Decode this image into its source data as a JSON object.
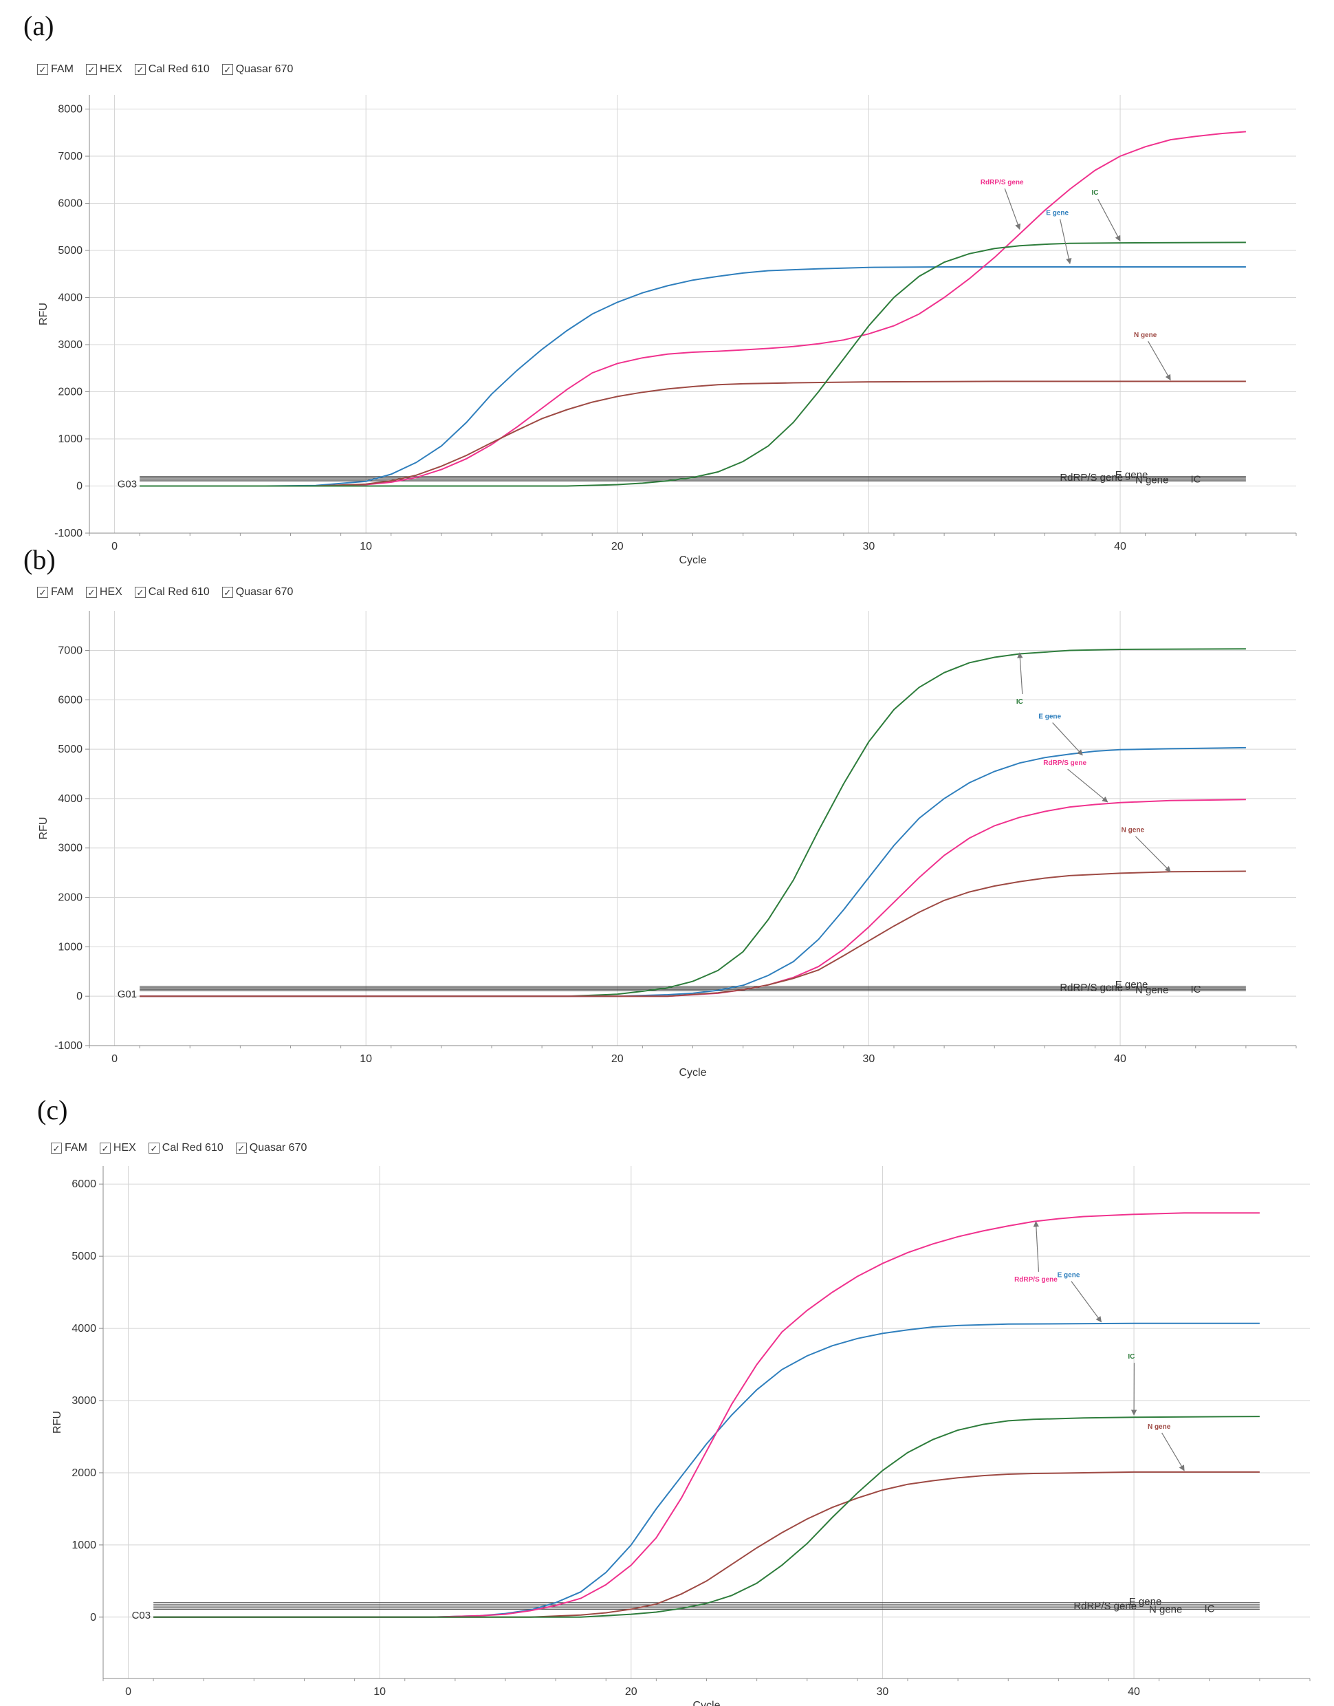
{
  "legend": [
    {
      "label": "FAM",
      "checked": true
    },
    {
      "label": "HEX",
      "checked": true
    },
    {
      "label": "Cal Red 610",
      "checked": true
    },
    {
      "label": "Quasar 670",
      "checked": true
    }
  ],
  "colors": {
    "E gene": "#2f7fbd",
    "RdRP/S gene": "#f0328e",
    "N gene": "#9e4a44",
    "IC": "#2e7d3c"
  },
  "chart_data": [
    {
      "panel_label": "(a)",
      "type": "line",
      "xlabel": "Cycle",
      "ylabel": "RFU",
      "xlim": [
        -1,
        47
      ],
      "ylim": [
        -1000,
        8300
      ],
      "xticks": [
        0,
        10,
        20,
        30,
        40
      ],
      "yticks": [
        -1000,
        0,
        1000,
        2000,
        3000,
        4000,
        5000,
        6000,
        7000,
        8000
      ],
      "well": "G03",
      "thresholds": [
        200,
        170,
        140,
        110
      ],
      "threshold_labels_text": [
        "RdRP/S gene",
        "E gene",
        "N gene",
        "IC"
      ],
      "series": [
        {
          "name": "E gene",
          "x": [
            1,
            6,
            8,
            10,
            11,
            12,
            13,
            14,
            15,
            16,
            17,
            18,
            19,
            20,
            21,
            22,
            23,
            24,
            25,
            26,
            28,
            30,
            33,
            36,
            40,
            45
          ],
          "y": [
            0,
            0,
            10,
            100,
            250,
            500,
            850,
            1350,
            1950,
            2450,
            2900,
            3300,
            3650,
            3900,
            4100,
            4250,
            4370,
            4450,
            4520,
            4570,
            4610,
            4640,
            4650,
            4650,
            4650,
            4650
          ]
        },
        {
          "name": "RdRP/S gene",
          "x": [
            1,
            8,
            10,
            11,
            12,
            13,
            14,
            15,
            16,
            17,
            18,
            19,
            20,
            21,
            22,
            23,
            24,
            25,
            26,
            27,
            28,
            29,
            30,
            31,
            32,
            33,
            34,
            35,
            36,
            37,
            38,
            39,
            40,
            41,
            42,
            43,
            44,
            45
          ],
          "y": [
            0,
            0,
            30,
            80,
            180,
            350,
            580,
            880,
            1250,
            1650,
            2050,
            2400,
            2600,
            2720,
            2800,
            2840,
            2860,
            2890,
            2920,
            2960,
            3020,
            3100,
            3230,
            3400,
            3650,
            4000,
            4400,
            4850,
            5350,
            5850,
            6300,
            6700,
            7000,
            7200,
            7350,
            7420,
            7480,
            7520
          ]
        },
        {
          "name": "N gene",
          "x": [
            1,
            8,
            10,
            11,
            12,
            13,
            14,
            15,
            16,
            17,
            18,
            19,
            20,
            21,
            22,
            23,
            24,
            25,
            27,
            30,
            35,
            40,
            45
          ],
          "y": [
            0,
            0,
            40,
            110,
            230,
            420,
            650,
            920,
            1180,
            1430,
            1620,
            1780,
            1900,
            1990,
            2060,
            2110,
            2150,
            2170,
            2190,
            2210,
            2220,
            2220,
            2220
          ]
        },
        {
          "name": "IC",
          "x": [
            1,
            18,
            20,
            21,
            22,
            23,
            24,
            25,
            26,
            27,
            28,
            29,
            30,
            31,
            32,
            33,
            34,
            35,
            36,
            37,
            38,
            40,
            45
          ],
          "y": [
            0,
            0,
            30,
            60,
            110,
            180,
            300,
            520,
            850,
            1350,
            2000,
            2700,
            3400,
            4000,
            4450,
            4750,
            4930,
            5040,
            5100,
            5130,
            5150,
            5160,
            5170
          ]
        }
      ],
      "annotations": [
        {
          "text": "RdRP/S gene",
          "series": "RdRP/S gene",
          "tx": 35.3,
          "ty": 6400,
          "hx": 36,
          "hy": 5450
        },
        {
          "text": "E gene",
          "series": "E gene",
          "tx": 37.5,
          "ty": 5750,
          "hx": 38,
          "hy": 4720
        },
        {
          "text": "IC",
          "series": "IC",
          "tx": 39,
          "ty": 6180,
          "hx": 40,
          "hy": 5200
        },
        {
          "text": "N gene",
          "series": "N gene",
          "tx": 41,
          "ty": 3160,
          "hx": 42,
          "hy": 2250
        }
      ]
    },
    {
      "panel_label": "(b)",
      "type": "line",
      "xlabel": "Cycle",
      "ylabel": "RFU",
      "xlim": [
        -1,
        47
      ],
      "ylim": [
        -1000,
        7800
      ],
      "xticks": [
        0,
        10,
        20,
        30,
        40
      ],
      "yticks": [
        -1000,
        0,
        1000,
        2000,
        3000,
        4000,
        5000,
        6000,
        7000
      ],
      "well": "G01",
      "thresholds": [
        200,
        170,
        140,
        110
      ],
      "threshold_labels_text": [
        "RdRP/S gene",
        "E gene",
        "N gene",
        "IC"
      ],
      "series": [
        {
          "name": "IC",
          "x": [
            1,
            18,
            20,
            21,
            22,
            23,
            24,
            25,
            26,
            27,
            28,
            29,
            30,
            31,
            32,
            33,
            34,
            35,
            36,
            38,
            40,
            45
          ],
          "y": [
            0,
            0,
            40,
            100,
            170,
            300,
            520,
            900,
            1550,
            2350,
            3350,
            4300,
            5150,
            5800,
            6250,
            6550,
            6750,
            6860,
            6930,
            7000,
            7020,
            7030
          ]
        },
        {
          "name": "E gene",
          "x": [
            1,
            20,
            22,
            23,
            24,
            25,
            26,
            27,
            28,
            29,
            30,
            31,
            32,
            33,
            34,
            35,
            36,
            37,
            38,
            39,
            40,
            42,
            45
          ],
          "y": [
            0,
            0,
            30,
            60,
            120,
            220,
            420,
            700,
            1150,
            1750,
            2400,
            3050,
            3600,
            4000,
            4320,
            4550,
            4720,
            4830,
            4900,
            4960,
            4990,
            5010,
            5030
          ]
        },
        {
          "name": "RdRP/S gene",
          "x": [
            1,
            22,
            24,
            25,
            26,
            27,
            28,
            29,
            30,
            31,
            32,
            33,
            34,
            35,
            36,
            37,
            38,
            39,
            40,
            42,
            45
          ],
          "y": [
            0,
            0,
            60,
            130,
            230,
            380,
            600,
            950,
            1400,
            1900,
            2400,
            2850,
            3200,
            3450,
            3620,
            3740,
            3830,
            3880,
            3920,
            3960,
            3980
          ]
        },
        {
          "name": "N gene",
          "x": [
            1,
            22,
            24,
            25,
            26,
            27,
            28,
            29,
            30,
            31,
            32,
            33,
            34,
            35,
            36,
            37,
            38,
            40,
            42,
            45
          ],
          "y": [
            0,
            0,
            70,
            130,
            230,
            360,
            530,
            820,
            1120,
            1420,
            1700,
            1940,
            2110,
            2230,
            2320,
            2390,
            2440,
            2490,
            2520,
            2530
          ]
        }
      ],
      "annotations": [
        {
          "text": "IC",
          "series": "IC",
          "tx": 36,
          "ty": 5920,
          "hx": 36,
          "hy": 6950
        },
        {
          "text": "E gene",
          "series": "E gene",
          "tx": 37.2,
          "ty": 5620,
          "hx": 38.5,
          "hy": 4880
        },
        {
          "text": "RdRP/S gene",
          "series": "RdRP/S gene",
          "tx": 37.8,
          "ty": 4680,
          "hx": 39.5,
          "hy": 3930
        },
        {
          "text": "N gene",
          "series": "N gene",
          "tx": 40.5,
          "ty": 3320,
          "hx": 42,
          "hy": 2520
        }
      ]
    },
    {
      "panel_label": "(c)",
      "type": "line",
      "xlabel": "Cycle",
      "ylabel": "RFU",
      "xlim": [
        -1,
        47
      ],
      "ylim": [
        -850,
        6250
      ],
      "xticks": [
        0,
        10,
        20,
        30,
        40
      ],
      "yticks": [
        0,
        1000,
        2000,
        3000,
        4000,
        5000,
        6000
      ],
      "well": "C03",
      "thresholds": [
        200,
        170,
        140,
        110
      ],
      "threshold_labels_text": [
        "RdRP/S gene",
        "E gene",
        "N gene",
        "IC"
      ],
      "series": [
        {
          "name": "E gene",
          "x": [
            1,
            12,
            14,
            15,
            16,
            17,
            18,
            19,
            20,
            21,
            22,
            23,
            24,
            25,
            26,
            27,
            28,
            29,
            30,
            31,
            32,
            33,
            35,
            40,
            45
          ],
          "y": [
            0,
            0,
            20,
            50,
            100,
            200,
            350,
            620,
            1000,
            1500,
            1950,
            2400,
            2800,
            3150,
            3430,
            3620,
            3760,
            3860,
            3930,
            3980,
            4020,
            4040,
            4060,
            4070,
            4070
          ]
        },
        {
          "name": "RdRP/S gene",
          "x": [
            1,
            12,
            14,
            15,
            16,
            17,
            18,
            19,
            20,
            21,
            22,
            23,
            24,
            25,
            26,
            27,
            28,
            29,
            30,
            31,
            32,
            33,
            34,
            35,
            36,
            37,
            38,
            40,
            42,
            45
          ],
          "y": [
            0,
            0,
            20,
            40,
            90,
            160,
            260,
            450,
            720,
            1100,
            1650,
            2300,
            2950,
            3500,
            3950,
            4250,
            4500,
            4720,
            4900,
            5050,
            5170,
            5270,
            5350,
            5420,
            5480,
            5520,
            5550,
            5580,
            5600,
            5600
          ]
        },
        {
          "name": "N gene",
          "x": [
            1,
            16,
            18,
            19,
            20,
            21,
            22,
            23,
            24,
            25,
            26,
            27,
            28,
            29,
            30,
            31,
            32,
            33,
            34,
            35,
            36,
            38,
            40,
            45
          ],
          "y": [
            0,
            0,
            30,
            60,
            110,
            180,
            320,
            500,
            730,
            960,
            1170,
            1360,
            1520,
            1650,
            1760,
            1840,
            1890,
            1930,
            1960,
            1980,
            1990,
            2000,
            2010,
            2010
          ]
        },
        {
          "name": "IC",
          "x": [
            1,
            18,
            20,
            21,
            22,
            23,
            24,
            25,
            26,
            27,
            28,
            29,
            30,
            31,
            32,
            33,
            34,
            35,
            36,
            38,
            40,
            45
          ],
          "y": [
            0,
            0,
            40,
            70,
            120,
            190,
            300,
            470,
            720,
            1020,
            1380,
            1720,
            2030,
            2280,
            2460,
            2590,
            2670,
            2720,
            2740,
            2760,
            2770,
            2780
          ]
        }
      ],
      "annotations": [
        {
          "text": "RdRP/S gene",
          "series": "RdRP/S gene",
          "tx": 36.1,
          "ty": 4650,
          "hx": 36.1,
          "hy": 5480
        },
        {
          "text": "E gene",
          "series": "E gene",
          "tx": 37.4,
          "ty": 4710,
          "hx": 38.7,
          "hy": 4090
        },
        {
          "text": "IC",
          "series": "IC",
          "tx": 39.9,
          "ty": 3580,
          "hx": 40,
          "hy": 2800
        },
        {
          "text": "N gene",
          "series": "N gene",
          "tx": 41,
          "ty": 2610,
          "hx": 42,
          "hy": 2030
        }
      ]
    }
  ]
}
